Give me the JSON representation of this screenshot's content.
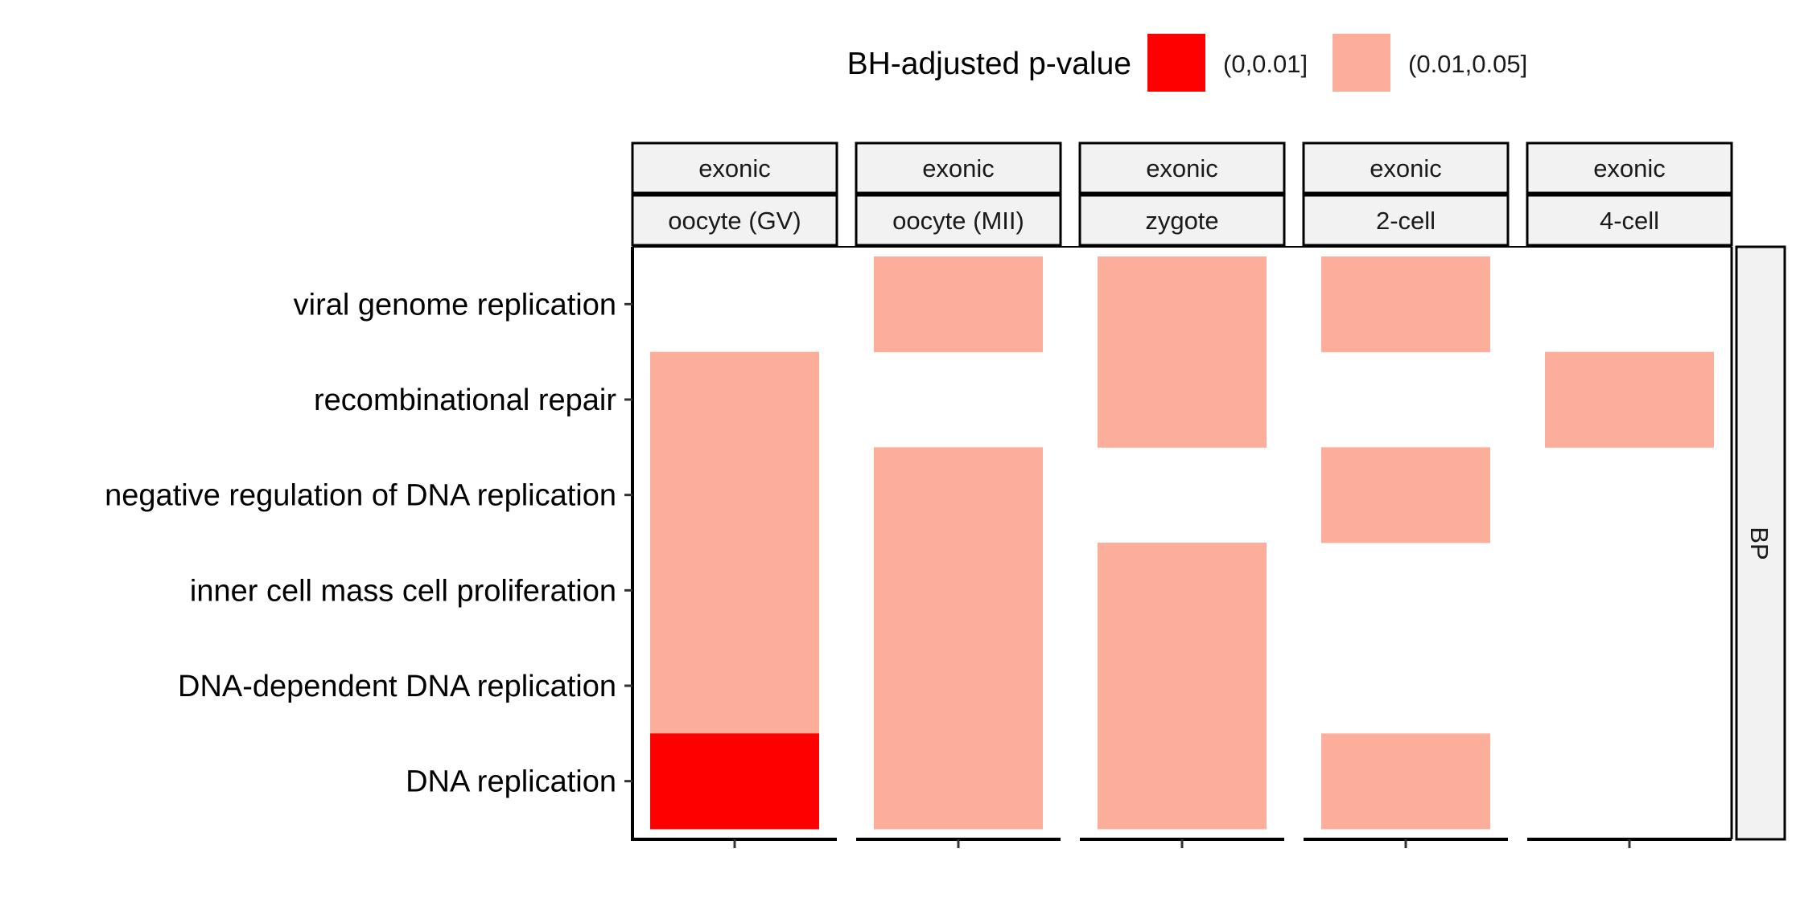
{
  "chart_data": {
    "type": "heatmap",
    "legend": {
      "title": "BH-adjusted p-value",
      "position": "top",
      "entries": [
        {
          "label": "(0,0.01]",
          "color": "#ff0000"
        },
        {
          "label": "(0.01,0.05]",
          "color": "#fcae9b"
        }
      ]
    },
    "row_facet": "BP",
    "categories": [
      "viral genome replication",
      "recombinational repair",
      "negative regulation of DNA replication",
      "inner cell mass cell proliferation",
      "DNA-dependent DNA replication",
      "DNA replication"
    ],
    "facets": [
      {
        "top": "exonic",
        "bottom": "oocyte (GV)",
        "cells": [
          null,
          "(0.01,0.05]",
          "(0.01,0.05]",
          "(0.01,0.05]",
          "(0.01,0.05]",
          "(0,0.01]"
        ]
      },
      {
        "top": "exonic",
        "bottom": "oocyte (MII)",
        "cells": [
          "(0.01,0.05]",
          null,
          "(0.01,0.05]",
          "(0.01,0.05]",
          "(0.01,0.05]",
          "(0.01,0.05]"
        ]
      },
      {
        "top": "exonic",
        "bottom": "zygote",
        "cells": [
          "(0.01,0.05]",
          "(0.01,0.05]",
          null,
          "(0.01,0.05]",
          "(0.01,0.05]",
          "(0.01,0.05]"
        ]
      },
      {
        "top": "exonic",
        "bottom": "2-cell",
        "cells": [
          "(0.01,0.05]",
          null,
          "(0.01,0.05]",
          null,
          null,
          "(0.01,0.05]"
        ]
      },
      {
        "top": "exonic",
        "bottom": "4-cell",
        "cells": [
          null,
          "(0.01,0.05]",
          null,
          null,
          null,
          null
        ]
      }
    ],
    "grid": false
  }
}
